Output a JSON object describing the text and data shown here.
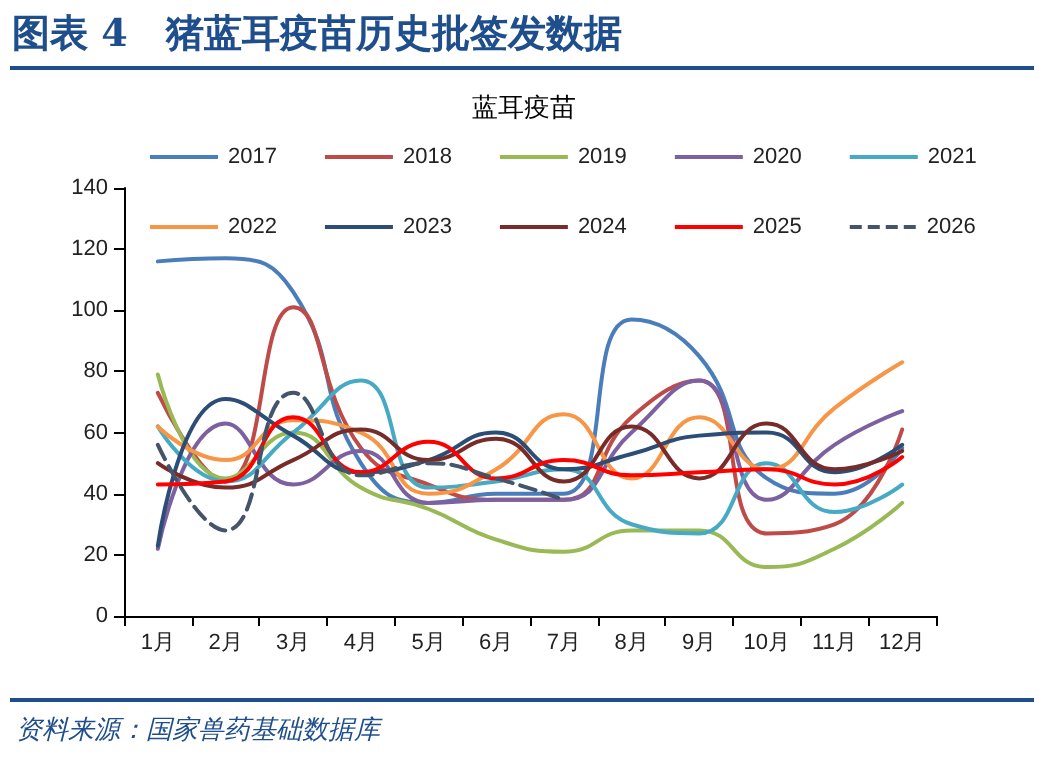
{
  "chart_data": {
    "type": "line",
    "title": "图表 4　猪蓝耳疫苗历史批签发数据",
    "subtitle": "蓝耳疫苗",
    "annotations": [
      "资料来源：国家兽药基础数据库"
    ],
    "categories": [
      "1月",
      "2月",
      "3月",
      "4月",
      "5月",
      "6月",
      "7月",
      "8月",
      "9月",
      "10月",
      "11月",
      "12月"
    ],
    "series": [
      {
        "name": "2017",
        "color": "#4a7ebb",
        "values": [
          116,
          117,
          106,
          50,
          37,
          40,
          40,
          97,
          85,
          45,
          40,
          55
        ]
      },
      {
        "name": "2018",
        "color": "#be4b48",
        "values": [
          73,
          44,
          101,
          55,
          43,
          38,
          38,
          65,
          77,
          27,
          30,
          61
        ]
      },
      {
        "name": "2019",
        "color": "#98b954",
        "values": [
          79,
          45,
          60,
          42,
          35,
          25,
          21,
          28,
          28,
          16,
          22,
          37
        ]
      },
      {
        "name": "2020",
        "color": "#7d60a0",
        "values": [
          22,
          63,
          43,
          54,
          37,
          38,
          38,
          60,
          77,
          38,
          56,
          67
        ]
      },
      {
        "name": "2021",
        "color": "#46aac5",
        "values": [
          62,
          44,
          60,
          77,
          42,
          44,
          48,
          30,
          27,
          50,
          34,
          43
        ]
      },
      {
        "name": "2022",
        "color": "#f79646",
        "values": [
          62,
          51,
          64,
          60,
          40,
          48,
          66,
          45,
          65,
          48,
          68,
          83
        ]
      },
      {
        "name": "2023",
        "color": "#2c4d75",
        "values": [
          23,
          71,
          59,
          47,
          51,
          60,
          48,
          53,
          59,
          60,
          47,
          56
        ]
      },
      {
        "name": "2024",
        "color": "#772c2a",
        "values": [
          50,
          42,
          51,
          61,
          51,
          58,
          44,
          62,
          45,
          63,
          48,
          54
        ]
      },
      {
        "name": "2025",
        "color": "#ff0000",
        "values": [
          43,
          44,
          65,
          47,
          57,
          45,
          51,
          46,
          47,
          48,
          43,
          52
        ]
      },
      {
        "name": "2026",
        "color": "#44546a",
        "line_style": "dashed",
        "values": [
          56,
          28,
          73,
          46,
          50,
          45,
          38,
          null,
          null,
          null,
          null,
          null
        ]
      }
    ],
    "ylim": [
      0,
      140
    ],
    "yticks": [
      0,
      20,
      40,
      60,
      80,
      100,
      120,
      140
    ],
    "grid": false,
    "legend": "top",
    "marker": "none",
    "line_style": "solid"
  }
}
